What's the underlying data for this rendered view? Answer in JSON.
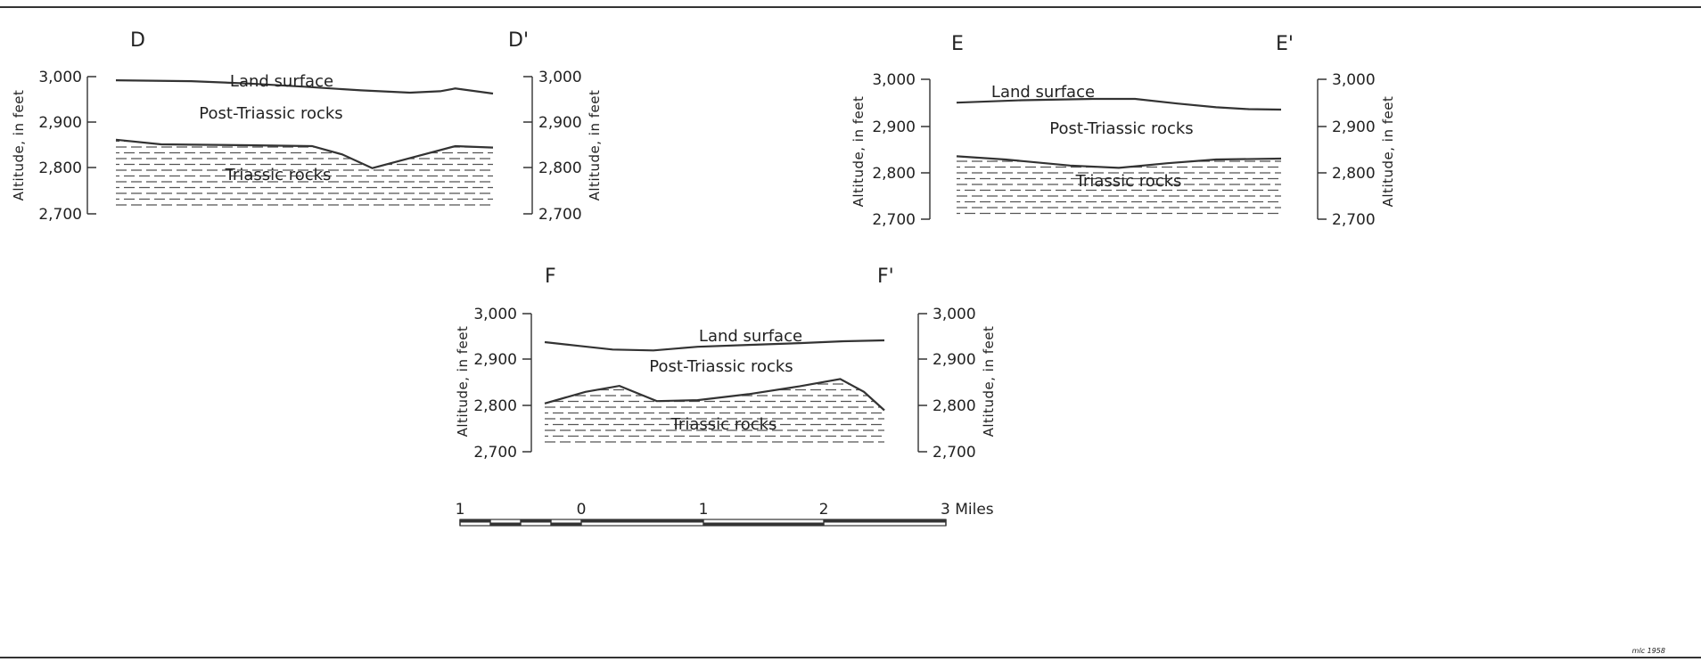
{
  "sections": [
    {
      "id": "D",
      "start_label": "D",
      "end_label": "D'",
      "y_ticks": [
        "3,000",
        "2,900",
        "2,800",
        "2,700"
      ],
      "y_axis_label": "Altitude, in feet",
      "land_surface_label": "Land surface",
      "upper_unit_label": "Post-Triassic rocks",
      "lower_unit_label": "Triassic rocks",
      "land_surface": [
        [
          0,
          2992
        ],
        [
          0.2,
          2990
        ],
        [
          0.35,
          2985
        ],
        [
          0.5,
          2978
        ],
        [
          0.65,
          2970
        ],
        [
          0.78,
          2965
        ],
        [
          0.86,
          2968
        ],
        [
          0.9,
          2974
        ],
        [
          1,
          2963
        ]
      ],
      "triassic_top": [
        [
          0,
          2862
        ],
        [
          0.12,
          2852
        ],
        [
          0.35,
          2850
        ],
        [
          0.52,
          2848
        ],
        [
          0.6,
          2830
        ],
        [
          0.68,
          2800
        ],
        [
          0.78,
          2822
        ],
        [
          0.9,
          2848
        ],
        [
          1,
          2845
        ]
      ]
    },
    {
      "id": "E",
      "start_label": "E",
      "end_label": "E'",
      "y_ticks": [
        "3,000",
        "2,900",
        "2,800",
        "2,700"
      ],
      "y_axis_label": "Altitude, in feet",
      "land_surface_label": "Land surface",
      "upper_unit_label": "Post-Triassic rocks",
      "lower_unit_label": "Triassic rocks",
      "land_surface": [
        [
          0,
          2950
        ],
        [
          0.2,
          2955
        ],
        [
          0.42,
          2958
        ],
        [
          0.55,
          2958
        ],
        [
          0.68,
          2948
        ],
        [
          0.8,
          2940
        ],
        [
          0.9,
          2936
        ],
        [
          1,
          2935
        ]
      ],
      "triassic_top": [
        [
          0,
          2835
        ],
        [
          0.15,
          2828
        ],
        [
          0.35,
          2815
        ],
        [
          0.5,
          2810
        ],
        [
          0.65,
          2820
        ],
        [
          0.8,
          2828
        ],
        [
          1,
          2830
        ]
      ]
    },
    {
      "id": "F",
      "start_label": "F",
      "end_label": "F'",
      "y_ticks": [
        "3,000",
        "2,900",
        "2,800",
        "2,700"
      ],
      "y_axis_label": "Altitude, in feet",
      "land_surface_label": "Land surface",
      "upper_unit_label": "Post-Triassic rocks",
      "lower_unit_label": "Triassic rocks",
      "land_surface": [
        [
          0,
          2938
        ],
        [
          0.1,
          2930
        ],
        [
          0.2,
          2922
        ],
        [
          0.32,
          2920
        ],
        [
          0.45,
          2928
        ],
        [
          0.6,
          2932
        ],
        [
          0.75,
          2936
        ],
        [
          0.88,
          2940
        ],
        [
          1,
          2942
        ]
      ],
      "triassic_top": [
        [
          0,
          2805
        ],
        [
          0.12,
          2830
        ],
        [
          0.22,
          2843
        ],
        [
          0.33,
          2810
        ],
        [
          0.45,
          2812
        ],
        [
          0.6,
          2825
        ],
        [
          0.75,
          2842
        ],
        [
          0.87,
          2858
        ],
        [
          0.94,
          2830
        ],
        [
          1,
          2790
        ]
      ]
    }
  ],
  "scale_bar": {
    "labels": [
      "1",
      "0",
      "1",
      "2",
      "3 Miles"
    ]
  },
  "initials": "mlc 1958"
}
